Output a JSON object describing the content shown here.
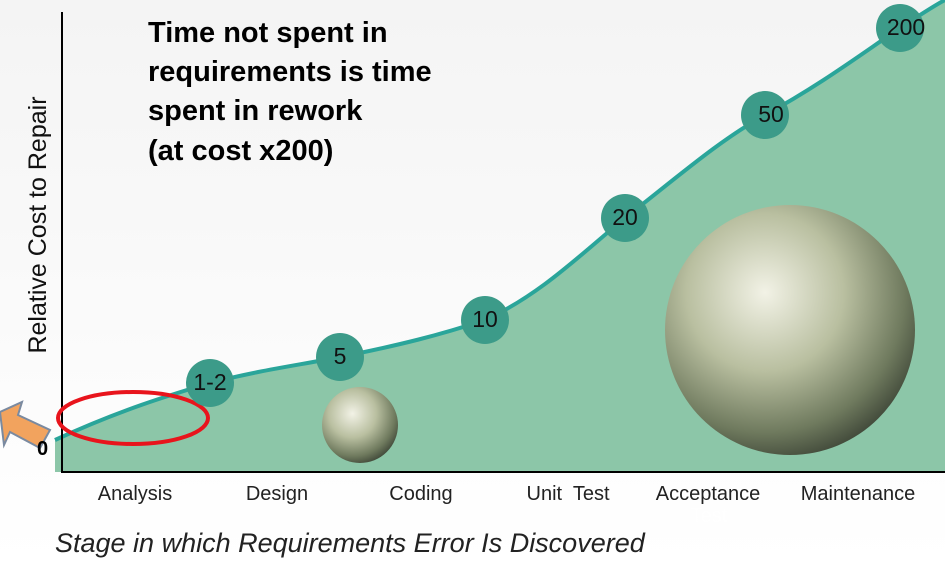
{
  "title_lines": [
    "Time not spent in",
    "requirements is time",
    "spent in rework",
    "(at cost x200)"
  ],
  "y_axis_label": "Relative Cost to Repair",
  "x_axis_label": "Stage in which Requirements Error Is Discovered",
  "origin_label": "0",
  "stages": [
    "Analysis",
    "Design",
    "Coding",
    "Unit  Test",
    "Acceptance",
    "Maintenance"
  ],
  "acceptance_sublabel": "Test",
  "point_labels": [
    "1-2",
    "5",
    "10",
    "20",
    "50",
    "200"
  ]
}
